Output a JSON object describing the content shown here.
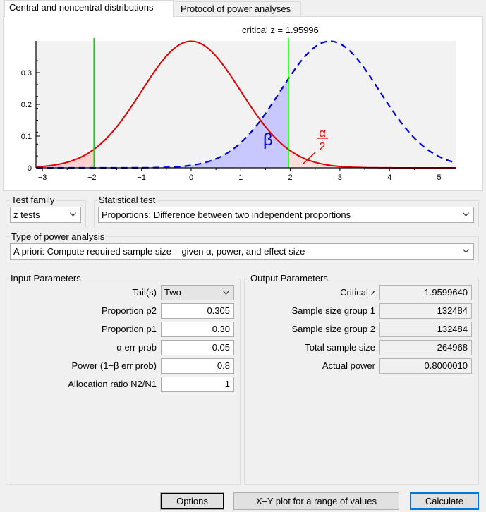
{
  "tabs": [
    {
      "label": "Central and noncentral distributions",
      "active": true
    },
    {
      "label": "Protocol of power analyses",
      "active": false
    }
  ],
  "plot": {
    "critical_text": "critical z =  1.95996",
    "beta_label": "β",
    "alpha_num": "α",
    "alpha_den": "2",
    "y_ticks": [
      "0",
      "0.1",
      "0.2",
      "0.3"
    ],
    "x_ticks": [
      "−3",
      "−2",
      "−1",
      "0",
      "1",
      "2",
      "3",
      "4",
      "5"
    ],
    "colors": {
      "central": "#e00000",
      "noncentral": "#0000dd",
      "critical": "#00dd00",
      "beta_fill": "#c8c8ff",
      "alpha_fill": "#ffd0d0"
    },
    "critical_z": 1.95996,
    "noncentrality": 2.8
  },
  "test_family": {
    "label": "Test family",
    "value": "z tests"
  },
  "statistical_test": {
    "label": "Statistical test",
    "value": "Proportions: Difference between two independent proportions"
  },
  "analysis_type": {
    "label": "Type of power analysis",
    "value": "A priori: Compute required sample size – given α, power, and effect size"
  },
  "input": {
    "title": "Input Parameters",
    "tails_label": "Tail(s)",
    "tails_value": "Two",
    "rows": [
      {
        "label": "Proportion p2",
        "value": "0.305"
      },
      {
        "label": "Proportion p1",
        "value": "0.30"
      },
      {
        "label": "α err prob",
        "value": "0.05"
      },
      {
        "label": "Power (1−β err prob)",
        "value": "0.8"
      },
      {
        "label": "Allocation ratio N2/N1",
        "value": "1"
      }
    ]
  },
  "output": {
    "title": "Output Parameters",
    "rows": [
      {
        "label": "Critical z",
        "value": "1.9599640"
      },
      {
        "label": "Sample size group 1",
        "value": "132484"
      },
      {
        "label": "Sample size group 2",
        "value": "132484"
      },
      {
        "label": "Total sample size",
        "value": "264968"
      },
      {
        "label": "Actual power",
        "value": "0.8000010"
      }
    ]
  },
  "buttons": {
    "options": "Options",
    "xy_plot": "X–Y plot for a range of values",
    "calculate": "Calculate"
  }
}
